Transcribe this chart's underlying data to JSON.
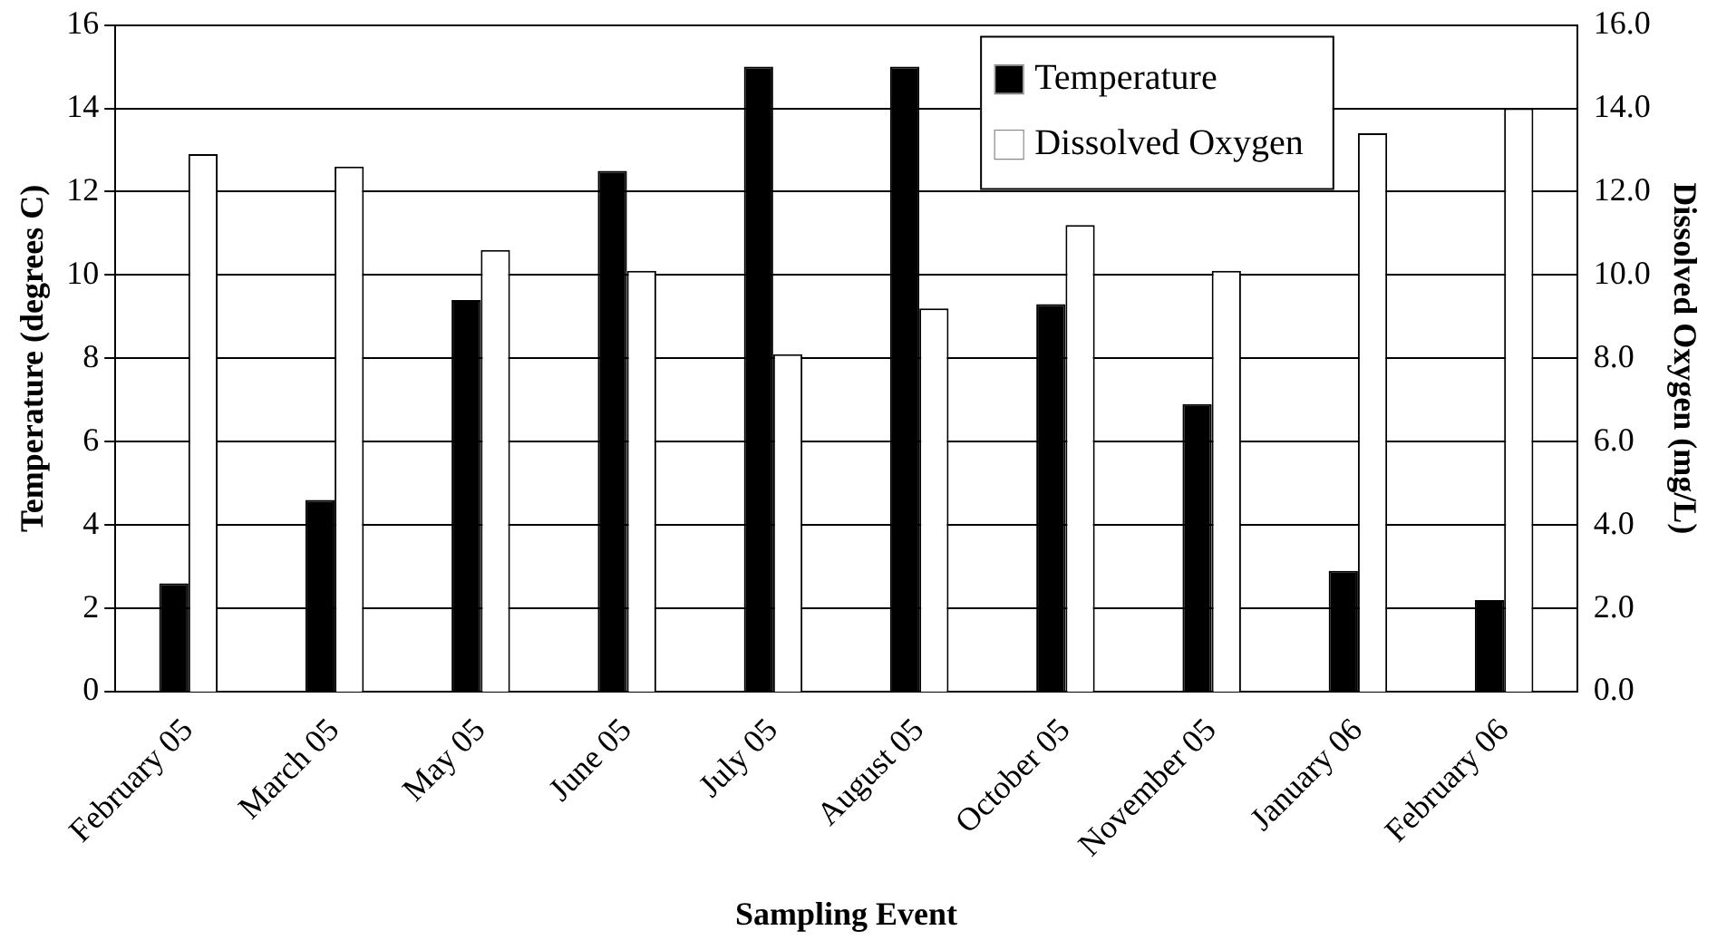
{
  "chart_data": {
    "type": "bar",
    "xlabel": "Sampling Event",
    "ylabel": "Temperature (degrees C)",
    "y2label": "Dissolved Oxygen (mg/L)",
    "categories": [
      "February 05",
      "March 05",
      "May 05",
      "June 05",
      "July 05",
      "August 05",
      "October 05",
      "November 05",
      "January 06",
      "February 06"
    ],
    "series": [
      {
        "name": "Temperature",
        "color": "#000000",
        "values": [
          2.6,
          4.6,
          9.4,
          12.5,
          15.0,
          15.0,
          9.3,
          6.9,
          2.9,
          2.2
        ]
      },
      {
        "name": "Dissolved Oxygen",
        "color": "#ffffff",
        "axis": "y2",
        "values": [
          12.9,
          12.6,
          10.6,
          10.1,
          8.1,
          9.2,
          11.2,
          10.1,
          13.4,
          14.0
        ]
      }
    ],
    "ylim": [
      0,
      16
    ],
    "yticks": [
      0,
      2,
      4,
      6,
      8,
      10,
      12,
      14,
      16
    ],
    "y2lim": [
      0,
      16
    ],
    "y2ticks": [
      {
        "value": 0,
        "label": "0.0"
      },
      {
        "value": 2,
        "label": "2.0"
      },
      {
        "value": 4,
        "label": "4.0"
      },
      {
        "value": 6,
        "label": "6.0"
      },
      {
        "value": 8,
        "label": "8.0"
      },
      {
        "value": 10,
        "label": "10.0"
      },
      {
        "value": 12,
        "label": "12.0"
      },
      {
        "value": 14,
        "label": "14.0"
      },
      {
        "value": 16,
        "label": "16.0"
      }
    ],
    "grid": "y",
    "legend": "top right"
  }
}
